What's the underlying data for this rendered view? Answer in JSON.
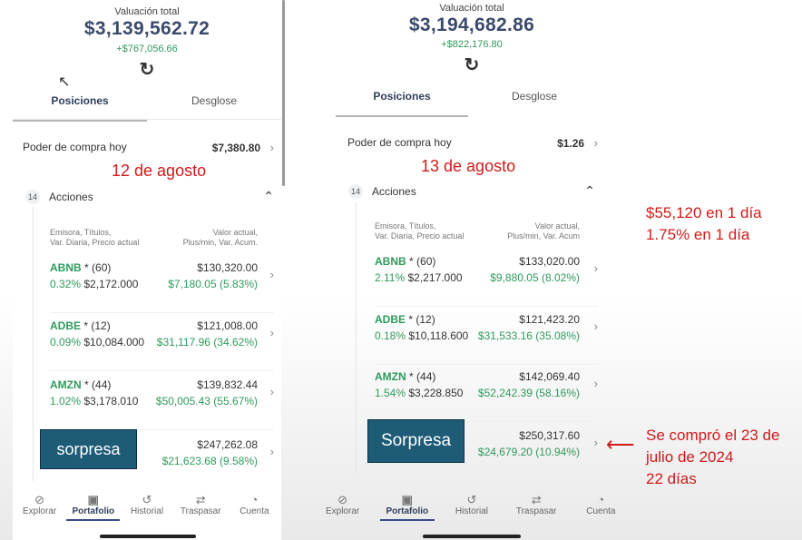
{
  "left": {
    "valuation_label": "Valuación total",
    "valuation_amount": "$3,139,562.72",
    "valuation_change": "+$767,056.66",
    "tabs": [
      {
        "label": "Posiciones",
        "active": true
      },
      {
        "label": "Desglose",
        "active": false
      }
    ],
    "buying_power_label": "Poder de compra hoy",
    "buying_power_value": "$7,380.80",
    "date_note": "12 de agosto",
    "section_count": "14",
    "section_title": "Acciones",
    "col_left": [
      "Emisora, Títulos,",
      "Var. Diaria, Precio actual"
    ],
    "col_right": [
      "Valor actual,",
      "Plus/min, Var. Acum."
    ],
    "holdings": [
      {
        "ticker": "ABNB",
        "qty": "* (60)",
        "value": "$130,320.00",
        "daily": "0.32%",
        "price": "$2,172.000",
        "pl": "$7,180.05 (5.83%)"
      },
      {
        "ticker": "ADBE",
        "qty": "* (12)",
        "value": "$121,008.00",
        "daily": "0.09%",
        "price": "$10,084.000",
        "pl": "$31,117.96 (34.62%)"
      },
      {
        "ticker": "AMZN",
        "qty": "* (44)",
        "value": "$139,832.44",
        "daily": "1.02%",
        "price": "$3,178.010",
        "pl": "$50,005.43 (55.67%)"
      }
    ],
    "surprise_label": "sorpresa",
    "surprise_value": "$247,262.08",
    "surprise_pl": "$21,623.68 (9.58%)"
  },
  "right": {
    "valuation_label": "Valuación total",
    "valuation_amount": "$3,194,682.86",
    "valuation_change": "+$822,176.80",
    "tabs": [
      {
        "label": "Posiciones",
        "active": true
      },
      {
        "label": "Desglose",
        "active": false
      }
    ],
    "buying_power_label": "Poder de compra hoy",
    "buying_power_value": "$1.26",
    "date_note": "13 de agosto",
    "section_count": "14",
    "section_title": "Acciones",
    "col_left": [
      "Emisora, Títulos,",
      "Var. Diaria, Precio actual"
    ],
    "col_right": [
      "Valor actual,",
      "Plus/min, Var. Acum"
    ],
    "holdings": [
      {
        "ticker": "ABNB",
        "qty": "* (60)",
        "value": "$133,020.00",
        "daily": "2.11%",
        "price": "$2,217.000",
        "pl": "$9,880.05 (8.02%)"
      },
      {
        "ticker": "ADBE",
        "qty": "* (12)",
        "value": "$121,423.20",
        "daily": "0.18%",
        "price": "$10,118.600",
        "pl": "$31,533.16 (35.08%)"
      },
      {
        "ticker": "AMZN",
        "qty": "* (44)",
        "value": "$142,069.40",
        "daily": "1.54%",
        "price": "$3,228.850",
        "pl": "$52,242.39 (58.16%)"
      }
    ],
    "surprise_label": "Sorpresa",
    "surprise_value": "$250,317.60",
    "surprise_pl": "$24,679.20 (10.94%)"
  },
  "nav": [
    {
      "label": "Explorar",
      "icon": "compass-icon",
      "glyph": "⊘"
    },
    {
      "label": "Portafolio",
      "icon": "briefcase-icon",
      "glyph": "💼"
    },
    {
      "label": "Historial",
      "icon": "history-icon",
      "glyph": "↺"
    },
    {
      "label": "Traspasar",
      "icon": "transfer-icon",
      "glyph": "⇄"
    },
    {
      "label": "Cuenta",
      "icon": "user-icon",
      "glyph": "👤"
    }
  ],
  "annotations": {
    "gain_day": "$55,120 en 1 día",
    "gain_pct": "1.75% en 1 día",
    "purchase_line1": "Se compró el 23 de",
    "purchase_line2": "julio de 2024",
    "purchase_line3": "22 días"
  },
  "colors": {
    "accent_green": "#2e9a5c",
    "title_navy": "#3a4a6b",
    "annotation_red": "#d01a1a",
    "surprise_box": "#1e5b77"
  }
}
